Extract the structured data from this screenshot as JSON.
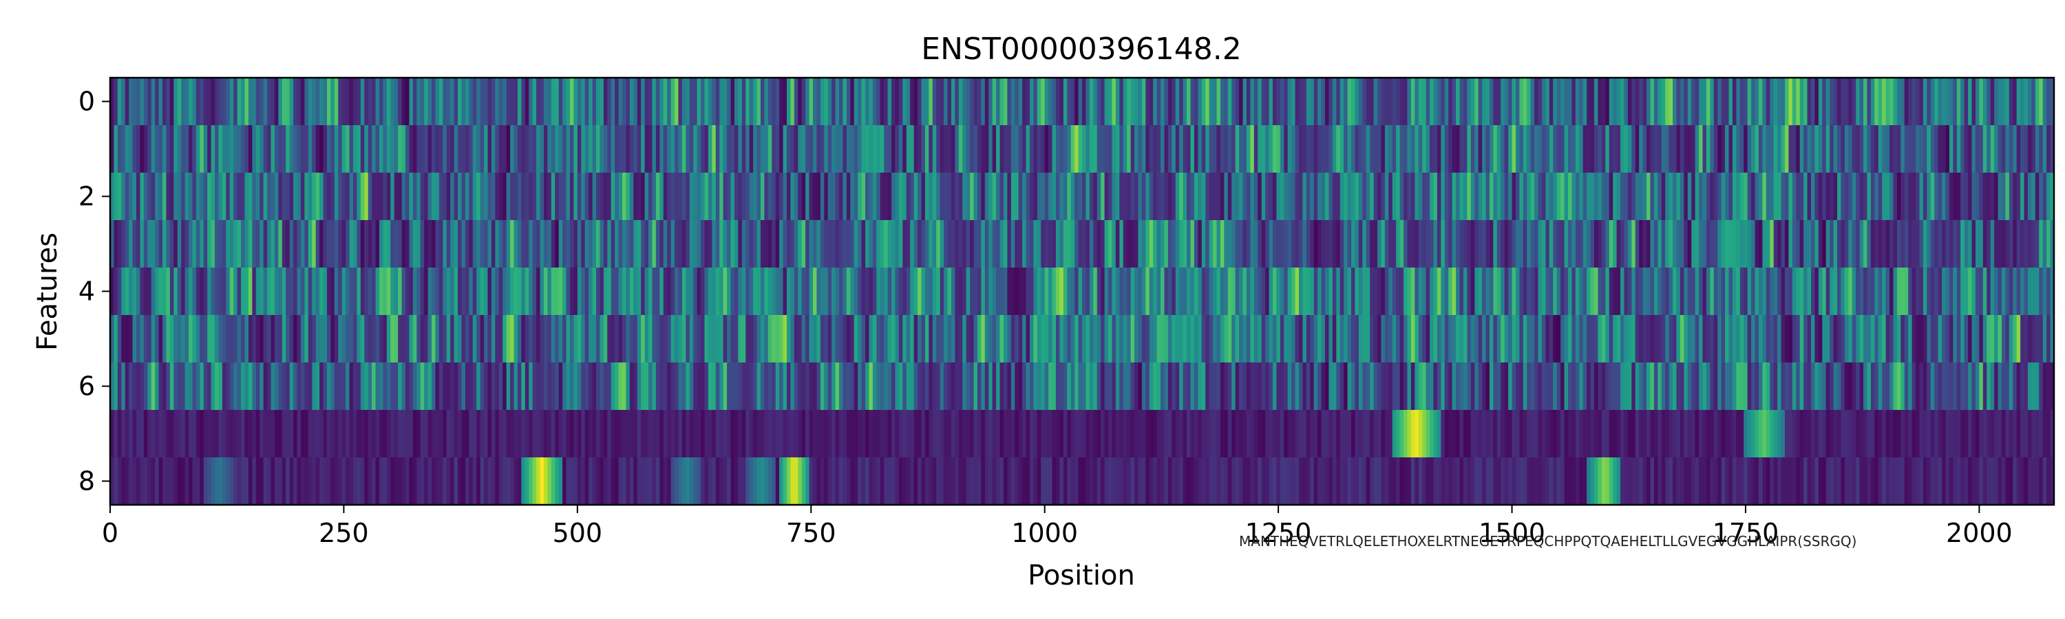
{
  "chart_data": {
    "type": "heatmap",
    "title": "ENST00000396148.2",
    "xlabel": "Position",
    "ylabel": "Features",
    "xlim": [
      0,
      2080
    ],
    "ylim": [
      8.5,
      -0.5
    ],
    "n_rows": 9,
    "n_positions": 2080,
    "colormap": "viridis",
    "x_ticks": [
      0,
      250,
      500,
      750,
      1000,
      1250,
      1500,
      1750,
      2000
    ],
    "x_tick_labels": [
      "0",
      "250",
      "500",
      "750",
      "1000",
      "1250",
      "1500",
      "1750",
      "2000"
    ],
    "y_ticks": [
      0,
      2,
      4,
      6,
      8
    ],
    "y_tick_labels": [
      "0",
      "2",
      "4",
      "6",
      "8"
    ],
    "row_mean_intensity": [
      0.45,
      0.4,
      0.42,
      0.32,
      0.45,
      0.45,
      0.3,
      0.12,
      0.15
    ],
    "highlight_blobs": [
      {
        "row": 7,
        "start": 1370,
        "end": 1420,
        "value": 1.0
      },
      {
        "row": 7,
        "start": 1745,
        "end": 1790,
        "value": 0.75
      },
      {
        "row": 8,
        "start": 440,
        "end": 480,
        "value": 1.0
      },
      {
        "row": 8,
        "start": 715,
        "end": 745,
        "value": 1.0
      },
      {
        "row": 8,
        "start": 1580,
        "end": 1615,
        "value": 0.85
      },
      {
        "row": 8,
        "start": 680,
        "end": 710,
        "value": 0.5
      },
      {
        "row": 8,
        "start": 100,
        "end": 130,
        "value": 0.4
      },
      {
        "row": 8,
        "start": 600,
        "end": 630,
        "value": 0.45
      }
    ],
    "overlapping_annotation_text": "MANTHEQVETRLQELETHOXELRTNEGETRPEQCHPPQTQAEHELTLLGVEGVGGHLAIPR(SSRGQ)"
  }
}
